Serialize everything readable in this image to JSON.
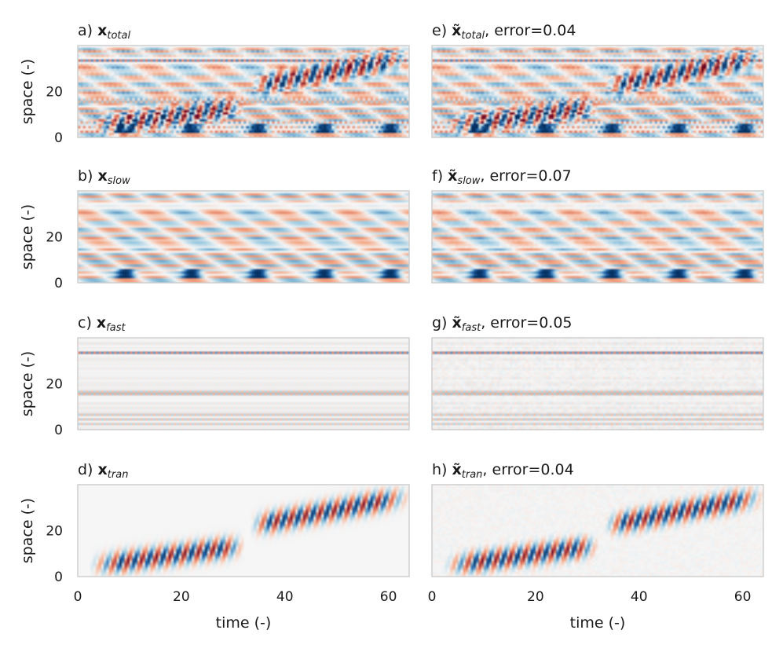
{
  "chart_data": [
    {
      "id": "a",
      "type": "heatmap",
      "field": "total",
      "prefix": "a) ",
      "symbol": "x",
      "subscript": "total",
      "tilde": false,
      "error_label": "",
      "ylabel": "space (-)",
      "xlabel": "",
      "xlim": [
        0,
        64
      ],
      "ylim": [
        0,
        40
      ],
      "yticks": [
        0,
        20
      ],
      "xticks": [],
      "colormap": "RdBu_r"
    },
    {
      "id": "e",
      "type": "heatmap",
      "field": "total",
      "prefix": "e) ",
      "symbol": "x",
      "subscript": "total",
      "tilde": true,
      "error_label": ", error=0.04",
      "ylabel": "",
      "xlabel": "",
      "xlim": [
        0,
        64
      ],
      "ylim": [
        0,
        40
      ],
      "yticks": [],
      "xticks": [],
      "colormap": "RdBu_r"
    },
    {
      "id": "b",
      "type": "heatmap",
      "field": "slow",
      "prefix": "b) ",
      "symbol": "x",
      "subscript": "slow",
      "tilde": false,
      "error_label": "",
      "ylabel": "space (-)",
      "xlabel": "",
      "xlim": [
        0,
        64
      ],
      "ylim": [
        0,
        40
      ],
      "yticks": [
        0,
        20
      ],
      "xticks": [],
      "colormap": "RdBu_r"
    },
    {
      "id": "f",
      "type": "heatmap",
      "field": "slow",
      "prefix": "f) ",
      "symbol": "x",
      "subscript": "slow",
      "tilde": true,
      "error_label": ", error=0.07",
      "ylabel": "",
      "xlabel": "",
      "xlim": [
        0,
        64
      ],
      "ylim": [
        0,
        40
      ],
      "yticks": [],
      "xticks": [],
      "colormap": "RdBu_r"
    },
    {
      "id": "c",
      "type": "heatmap",
      "field": "fast",
      "prefix": "c) ",
      "symbol": "x",
      "subscript": "fast",
      "tilde": false,
      "error_label": "",
      "ylabel": "space (-)",
      "xlabel": "",
      "xlim": [
        0,
        64
      ],
      "ylim": [
        0,
        40
      ],
      "yticks": [
        0,
        20
      ],
      "xticks": [],
      "colormap": "RdBu_r"
    },
    {
      "id": "g",
      "type": "heatmap",
      "field": "fast",
      "prefix": "g) ",
      "symbol": "x",
      "subscript": "fast",
      "tilde": true,
      "error_label": ", error=0.05",
      "ylabel": "",
      "xlabel": "",
      "xlim": [
        0,
        64
      ],
      "ylim": [
        0,
        40
      ],
      "yticks": [],
      "xticks": [],
      "colormap": "RdBu_r"
    },
    {
      "id": "d",
      "type": "heatmap",
      "field": "tran",
      "prefix": "d) ",
      "symbol": "x",
      "subscript": "tran",
      "tilde": false,
      "error_label": "",
      "ylabel": "space (-)",
      "xlabel": "time (-)",
      "xlim": [
        0,
        64
      ],
      "ylim": [
        0,
        40
      ],
      "yticks": [
        0,
        20
      ],
      "xticks": [
        0,
        20,
        40,
        60
      ],
      "colormap": "RdBu_r"
    },
    {
      "id": "h",
      "type": "heatmap",
      "field": "tran",
      "prefix": "h) ",
      "symbol": "x",
      "subscript": "tran",
      "tilde": true,
      "error_label": ", error=0.04",
      "ylabel": "",
      "xlabel": "time (-)",
      "xlim": [
        0,
        64
      ],
      "ylim": [
        0,
        40
      ],
      "yticks": [],
      "xticks": [
        0,
        20,
        40,
        60
      ],
      "colormap": "RdBu_r"
    }
  ],
  "colors": {
    "negative": "#0a3b7a",
    "neutral": "#f6f6f6",
    "positive": "#7a0b1e",
    "frame": "#cccccc",
    "text": "#1a1a1a"
  }
}
